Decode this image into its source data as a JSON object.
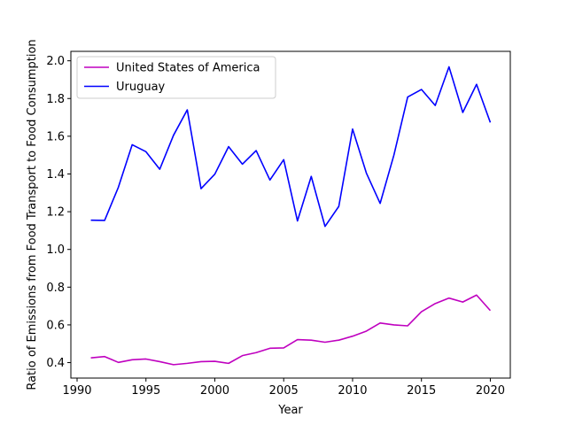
{
  "chart_data": {
    "type": "line",
    "xlabel": "Year",
    "ylabel": "Ratio of Emissions from Food Transport to Food Consumption",
    "xlim": [
      1989.55,
      2021.45
    ],
    "ylim": [
      0.318,
      2.05
    ],
    "x_ticks": [
      1990,
      1995,
      2000,
      2005,
      2010,
      2015,
      2020
    ],
    "y_ticks": [
      0.4,
      0.6,
      0.8,
      1.0,
      1.2,
      1.4,
      1.6,
      1.8,
      2.0
    ],
    "x_tick_labels": [
      "1990",
      "1995",
      "2000",
      "2005",
      "2010",
      "2015",
      "2020"
    ],
    "y_tick_labels": [
      "0.4",
      "0.6",
      "0.8",
      "1.0",
      "1.2",
      "1.4",
      "1.6",
      "1.8",
      "2.0"
    ],
    "legend_position": "top-left",
    "grid": false,
    "x": [
      1991,
      1992,
      1993,
      1994,
      1995,
      1996,
      1997,
      1998,
      1999,
      2000,
      2001,
      2002,
      2003,
      2004,
      2005,
      2006,
      2007,
      2008,
      2009,
      2010,
      2011,
      2012,
      2013,
      2014,
      2015,
      2016,
      2017,
      2018,
      2019,
      2020
    ],
    "series": [
      {
        "name": "United States of America",
        "color": "#bf00bf",
        "values": [
          0.425,
          0.432,
          0.401,
          0.415,
          0.419,
          0.405,
          0.389,
          0.396,
          0.405,
          0.407,
          0.396,
          0.437,
          0.453,
          0.476,
          0.478,
          0.522,
          0.519,
          0.508,
          0.519,
          0.54,
          0.567,
          0.61,
          0.6,
          0.595,
          0.67,
          0.713,
          0.742,
          0.721,
          0.758,
          0.676
        ]
      },
      {
        "name": "Uruguay",
        "color": "#0000ff",
        "values": [
          1.155,
          1.154,
          1.33,
          1.555,
          1.518,
          1.425,
          1.605,
          1.74,
          1.322,
          1.399,
          1.545,
          1.452,
          1.524,
          1.368,
          1.476,
          1.151,
          1.387,
          1.122,
          1.228,
          1.638,
          1.405,
          1.244,
          1.5,
          1.808,
          1.848,
          1.763,
          1.968,
          1.726,
          1.875,
          1.673
        ]
      }
    ]
  }
}
